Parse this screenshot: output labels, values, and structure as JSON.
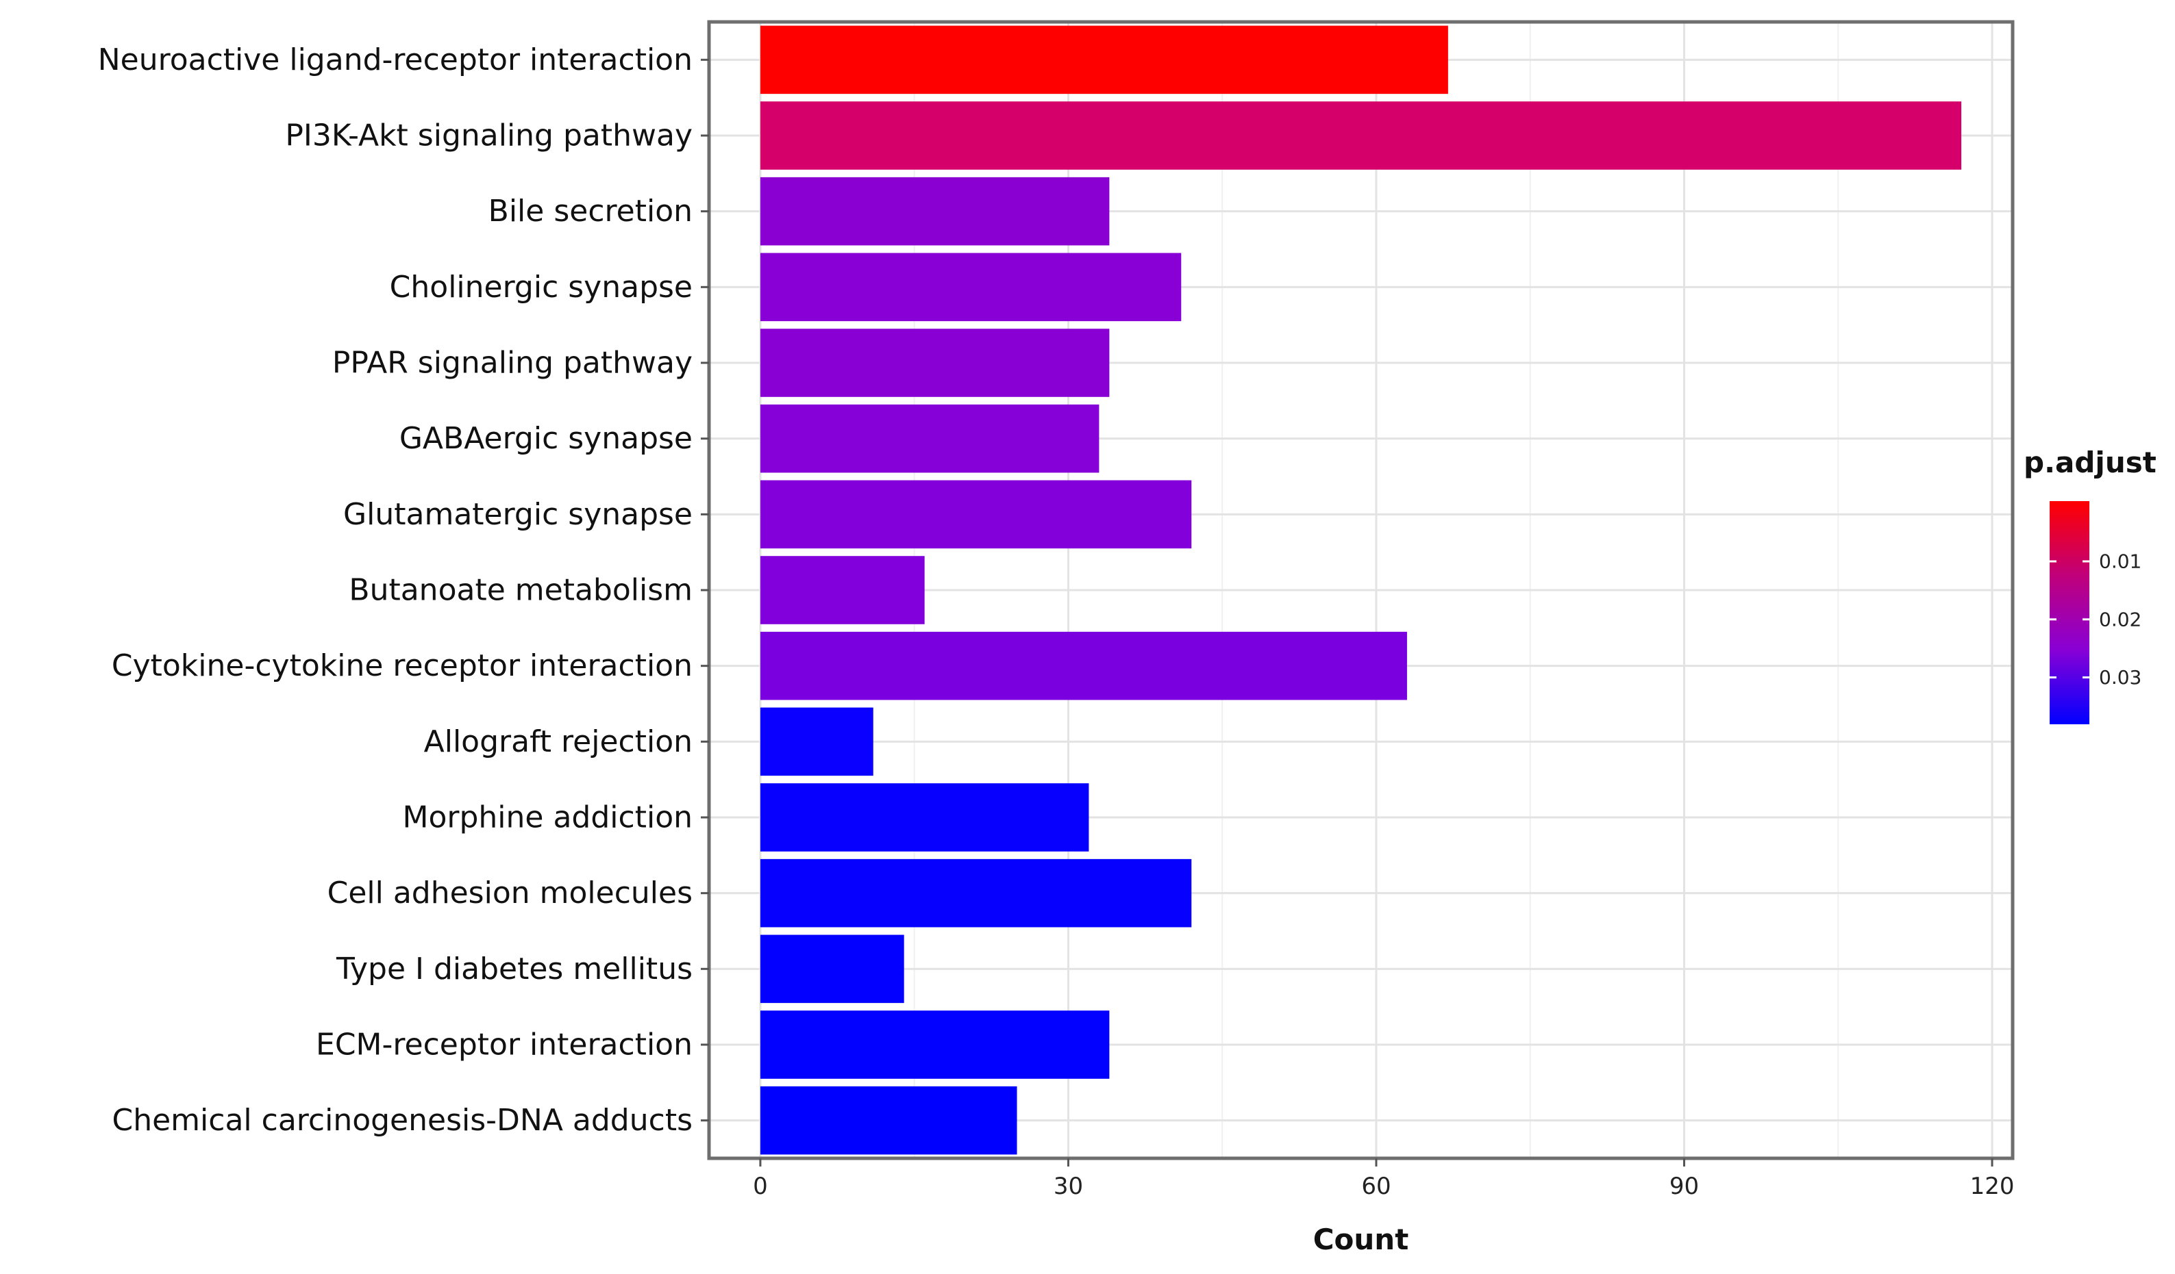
{
  "chart_data": {
    "type": "bar",
    "orientation": "horizontal",
    "title": "",
    "xlabel": "Count",
    "ylabel": "",
    "xlim": [
      -5,
      122
    ],
    "xticks": [
      0,
      30,
      60,
      90,
      120
    ],
    "xtick_labels": [
      "0",
      "30",
      "60",
      "90",
      "120"
    ],
    "grid": true,
    "categories": [
      "Neuroactive ligand-receptor interaction",
      "PI3K-Akt signaling pathway",
      "Bile secretion",
      "Cholinergic synapse",
      "PPAR signaling pathway",
      "GABAergic synapse",
      "Glutamatergic synapse",
      "Butanoate metabolism",
      "Cytokine-cytokine receptor interaction",
      "Allograft rejection",
      "Morphine addiction",
      "Cell adhesion molecules",
      "Type  I diabetes mellitus",
      "ECM-receptor  interaction",
      "Chemical carcinogenesis-DNA adducts"
    ],
    "values": [
      67,
      117,
      34,
      41,
      34,
      33,
      42,
      16,
      63,
      11,
      32,
      42,
      14,
      34,
      25
    ],
    "colors": [
      "#ff0000",
      "#d6006a",
      "#8a00d2",
      "#8800d6",
      "#8800d4",
      "#8600d8",
      "#8400da",
      "#8200dc",
      "#7a00e0",
      "#0a00ff",
      "#0800ff",
      "#0600ff",
      "#0400ff",
      "#0200ff",
      "#0000ff"
    ],
    "legend": {
      "title": "p.adjust",
      "position": "right",
      "colors": [
        "#ff0000",
        "#c0007a",
        "#8800d6",
        "#0000ff"
      ],
      "tick_labels": [
        "0.01",
        "0.02",
        "0.03"
      ],
      "tick_positions": [
        0.27,
        0.53,
        0.79
      ]
    }
  }
}
